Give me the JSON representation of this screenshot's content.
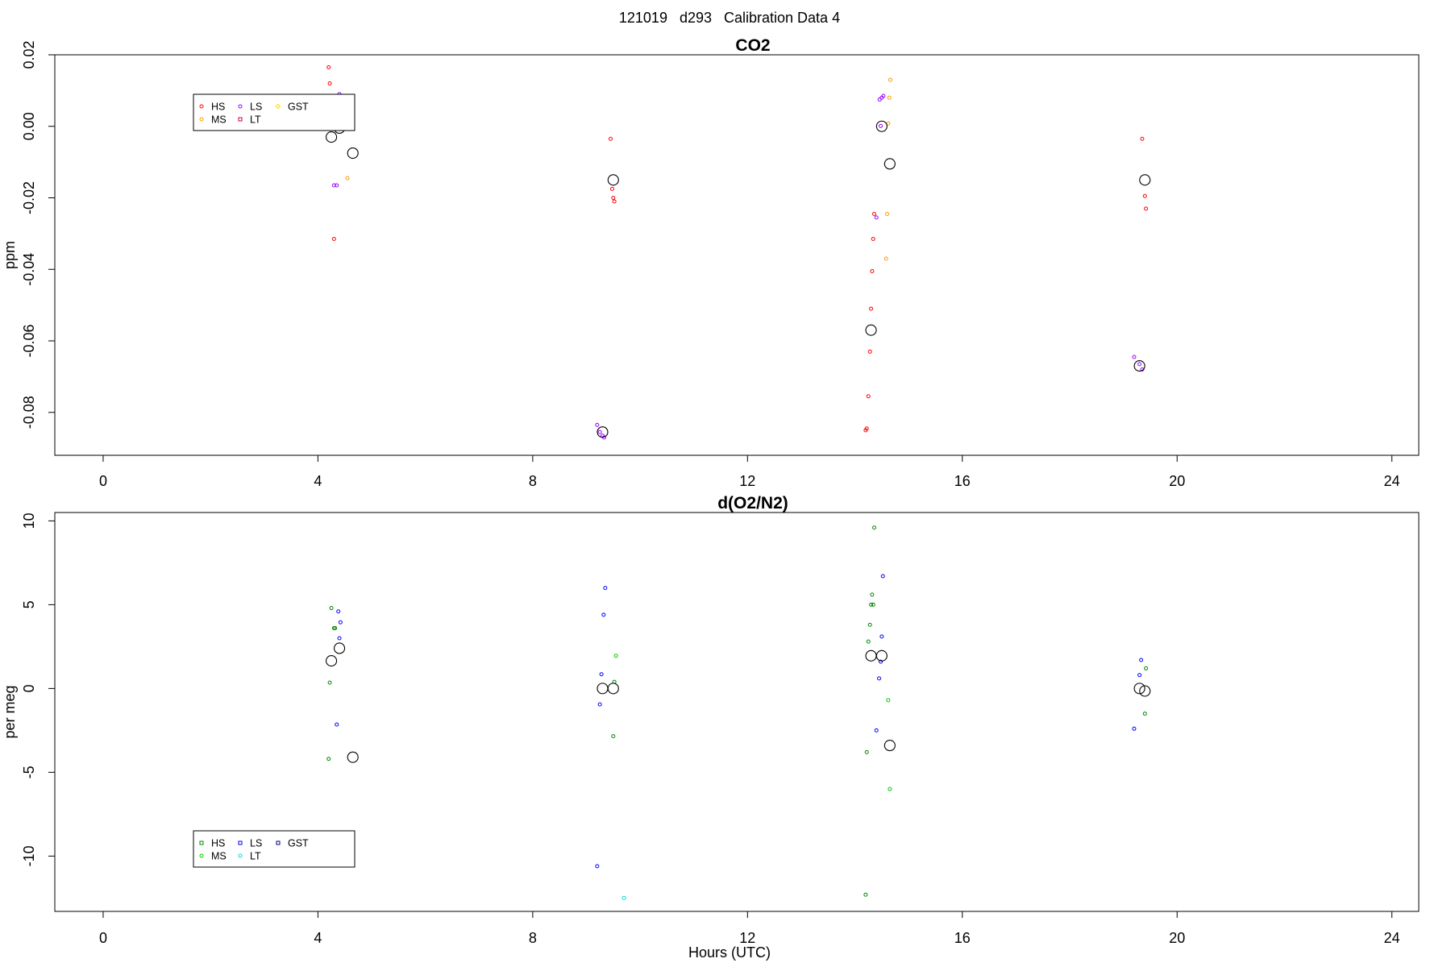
{
  "figure": {
    "suptitle": "121019   d293   Calibration Data 4",
    "xlabel": "Hours (UTC)"
  },
  "chart_data": [
    {
      "type": "scatter",
      "title": "CO2",
      "xlabel": "",
      "ylabel": "ppm",
      "xlim": [
        -0.9,
        24.5
      ],
      "ylim": [
        -0.092,
        0.02
      ],
      "xticks": [
        0,
        4,
        8,
        12,
        16,
        20,
        24
      ],
      "yticks": [
        -0.08,
        -0.06,
        -0.04,
        -0.02,
        0.0,
        0.02
      ],
      "ytick_labels": [
        "-0.08",
        "-0.06",
        "-0.04",
        "-0.02",
        "0.00",
        "0.02"
      ],
      "grid": false,
      "legend": {
        "position": "top-left",
        "items": [
          {
            "name": "HS",
            "color": "#ff0000",
            "marker": "circle"
          },
          {
            "name": "MS",
            "color": "#ff9900",
            "marker": "circle"
          },
          {
            "name": "LS",
            "color": "#9900ff",
            "marker": "circle"
          },
          {
            "name": "LT",
            "color": "#cc0033",
            "marker": "square"
          },
          {
            "name": "GST",
            "color": "#ffd700",
            "marker": "diamond"
          }
        ]
      },
      "series": [
        {
          "name": "HS",
          "color": "#ff0000",
          "points": [
            [
              4.2,
              0.0165
            ],
            [
              4.22,
              0.012
            ],
            [
              4.3,
              -0.0315
            ],
            [
              9.45,
              -0.0035
            ],
            [
              9.48,
              -0.0175
            ],
            [
              9.5,
              -0.02
            ],
            [
              9.52,
              -0.021
            ],
            [
              14.2,
              -0.085
            ],
            [
              14.22,
              -0.0845
            ],
            [
              14.25,
              -0.0755
            ],
            [
              14.28,
              -0.063
            ],
            [
              14.3,
              -0.051
            ],
            [
              14.32,
              -0.0405
            ],
            [
              14.34,
              -0.0315
            ],
            [
              14.36,
              -0.0245
            ],
            [
              19.35,
              -0.0035
            ],
            [
              19.4,
              -0.0195
            ],
            [
              19.42,
              -0.023
            ]
          ]
        },
        {
          "name": "MS",
          "color": "#ff9900",
          "points": [
            [
              4.55,
              -0.0145
            ],
            [
              14.58,
              -0.037
            ],
            [
              14.6,
              -0.0245
            ],
            [
              14.62,
              0.0008
            ],
            [
              14.64,
              0.008
            ],
            [
              14.66,
              0.013
            ]
          ]
        },
        {
          "name": "LS",
          "color": "#9900ff",
          "points": [
            [
              4.3,
              -0.0165
            ],
            [
              4.35,
              -0.0165
            ],
            [
              4.4,
              0.009
            ],
            [
              9.2,
              -0.0835
            ],
            [
              9.25,
              -0.0855
            ],
            [
              9.3,
              -0.0865
            ],
            [
              9.33,
              -0.087
            ],
            [
              14.4,
              -0.0255
            ],
            [
              14.46,
              0.0075
            ],
            [
              14.5,
              0.008
            ],
            [
              14.53,
              0.0085
            ],
            [
              14.48,
              0.0001
            ],
            [
              19.2,
              -0.0645
            ],
            [
              19.3,
              -0.0665
            ],
            [
              19.35,
              -0.068
            ]
          ]
        },
        {
          "name": "means",
          "color": "#000000",
          "size": "large",
          "points": [
            [
              4.25,
              -0.003
            ],
            [
              4.4,
              -0.0005
            ],
            [
              4.65,
              -0.0075
            ],
            [
              9.3,
              -0.0855
            ],
            [
              9.5,
              -0.015
            ],
            [
              14.3,
              -0.057
            ],
            [
              14.5,
              0.0
            ],
            [
              14.65,
              -0.0105
            ],
            [
              19.3,
              -0.067
            ],
            [
              19.4,
              -0.015
            ]
          ]
        }
      ]
    },
    {
      "type": "scatter",
      "title": "d(O2/N2)",
      "xlabel": "Hours (UTC)",
      "ylabel": "per meg",
      "xlim": [
        -0.9,
        24.5
      ],
      "ylim": [
        -13.3,
        10.5
      ],
      "xticks": [
        0,
        4,
        8,
        12,
        16,
        20,
        24
      ],
      "yticks": [
        -10,
        -5,
        0,
        5,
        10
      ],
      "ytick_labels": [
        "-10",
        "-5",
        "0",
        "5",
        "10"
      ],
      "grid": false,
      "legend": {
        "position": "bottom-left",
        "items": [
          {
            "name": "HS",
            "color": "#008800",
            "marker": "square"
          },
          {
            "name": "MS",
            "color": "#00cc00",
            "marker": "circle"
          },
          {
            "name": "LS",
            "color": "#0000ff",
            "marker": "square"
          },
          {
            "name": "LT",
            "color": "#00dddd",
            "marker": "circle"
          },
          {
            "name": "GST",
            "color": "#000088",
            "marker": "square"
          }
        ]
      },
      "series": [
        {
          "name": "HS",
          "color": "#008800",
          "points": [
            [
              4.2,
              -4.2
            ],
            [
              4.22,
              0.35
            ],
            [
              4.25,
              4.8
            ],
            [
              4.3,
              3.6
            ],
            [
              4.32,
              3.6
            ],
            [
              9.5,
              -2.85
            ],
            [
              9.52,
              0.4
            ],
            [
              14.2,
              -12.3
            ],
            [
              14.22,
              -3.8
            ],
            [
              14.25,
              2.8
            ],
            [
              14.28,
              3.8
            ],
            [
              14.3,
              5.0
            ],
            [
              14.32,
              5.6
            ],
            [
              14.34,
              5.0
            ],
            [
              14.36,
              9.6
            ],
            [
              19.4,
              -1.5
            ],
            [
              19.42,
              1.2
            ]
          ]
        },
        {
          "name": "MS",
          "color": "#00cc00",
          "points": [
            [
              9.55,
              1.95
            ],
            [
              14.62,
              -0.7
            ],
            [
              14.65,
              -6.0
            ]
          ]
        },
        {
          "name": "LS",
          "color": "#0000ff",
          "points": [
            [
              4.35,
              -2.15
            ],
            [
              4.4,
              3.0
            ],
            [
              4.42,
              3.95
            ],
            [
              4.38,
              4.6
            ],
            [
              9.2,
              -10.6
            ],
            [
              9.25,
              -0.95
            ],
            [
              9.28,
              0.85
            ],
            [
              9.32,
              4.4
            ],
            [
              9.35,
              6.0
            ],
            [
              14.4,
              -2.5
            ],
            [
              14.45,
              0.6
            ],
            [
              14.48,
              1.6
            ],
            [
              14.5,
              3.1
            ],
            [
              14.52,
              6.7
            ],
            [
              19.2,
              -2.4
            ],
            [
              19.3,
              0.8
            ],
            [
              19.33,
              1.7
            ]
          ]
        },
        {
          "name": "LT",
          "color": "#00dddd",
          "points": [
            [
              9.7,
              -12.5
            ]
          ]
        },
        {
          "name": "means",
          "color": "#000000",
          "size": "large",
          "points": [
            [
              4.25,
              1.65
            ],
            [
              4.4,
              2.4
            ],
            [
              4.65,
              -4.1
            ],
            [
              9.3,
              0.0
            ],
            [
              9.5,
              0.0
            ],
            [
              14.3,
              1.95
            ],
            [
              14.5,
              1.95
            ],
            [
              14.65,
              -3.4
            ],
            [
              19.3,
              0.0
            ],
            [
              19.4,
              -0.15
            ]
          ]
        }
      ]
    }
  ]
}
